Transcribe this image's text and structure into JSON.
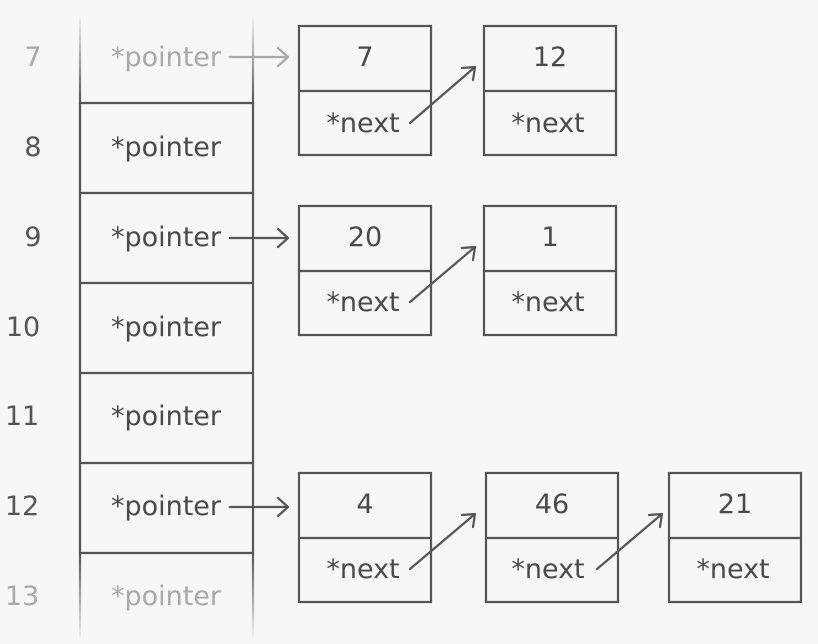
{
  "hash_table": {
    "slots": [
      {
        "index": "7",
        "label": "*pointer",
        "faded": true
      },
      {
        "index": "8",
        "label": "*pointer",
        "faded": false
      },
      {
        "index": "9",
        "label": "*pointer",
        "faded": false
      },
      {
        "index": "10",
        "label": "*pointer",
        "faded": false
      },
      {
        "index": "11",
        "label": "*pointer",
        "faded": false
      },
      {
        "index": "12",
        "label": "*pointer",
        "faded": false
      },
      {
        "index": "13",
        "label": "*pointer",
        "faded": true
      }
    ]
  },
  "chains": [
    {
      "slot": "7",
      "nodes": [
        {
          "value": "7",
          "next": "*next"
        },
        {
          "value": "12",
          "next": "*next"
        }
      ]
    },
    {
      "slot": "9",
      "nodes": [
        {
          "value": "20",
          "next": "*next"
        },
        {
          "value": "1",
          "next": "*next"
        }
      ]
    },
    {
      "slot": "12",
      "nodes": [
        {
          "value": "4",
          "next": "*next"
        },
        {
          "value": "46",
          "next": "*next"
        },
        {
          "value": "21",
          "next": "*next"
        }
      ]
    }
  ],
  "colors": {
    "stroke": "#555555",
    "text": "#4a4a4a",
    "faded": "#a9a9a9",
    "background": "#f7f7f7"
  }
}
